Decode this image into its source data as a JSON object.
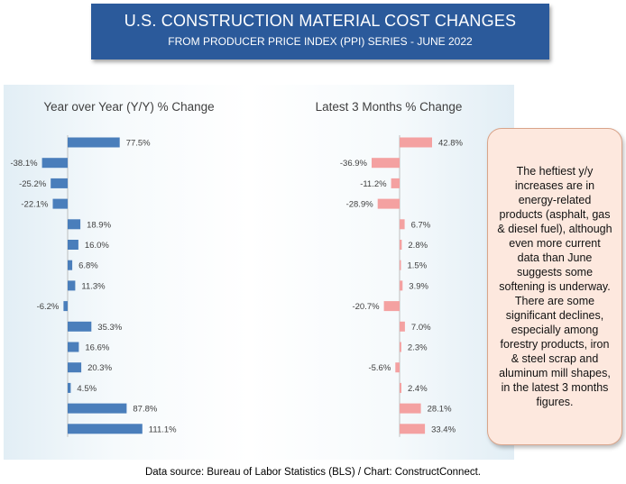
{
  "title": {
    "line1": "U.S. CONSTRUCTION MATERIAL COST CHANGES",
    "line2": "FROM PRODUCER PRICE INDEX (PPI) SERIES - JUNE 2022"
  },
  "note": "The heftiest y/y increases are in energy-related products (asphalt, gas & diesel fuel), although even more current data than June suggests some softening is underway. There are some significant declines, especially among forestry products, iron & steel scrap and aluminum mill shapes, in the latest 3 months figures.",
  "source": "Data source: Bureau of Labor Statistics (BLS) / Chart: ConstructConnect.",
  "colors": {
    "yoy": "#4a7ebb",
    "m3": "#f4a1a1",
    "title_bg": "#2b5a9b",
    "note_bg": "#fde8de"
  },
  "chart_data": [
    {
      "type": "bar",
      "orientation": "horizontal",
      "title": "Year over Year (Y/Y) % Change",
      "values": [
        77.5,
        -38.1,
        -25.2,
        -22.1,
        18.9,
        16.0,
        6.8,
        11.3,
        -6.2,
        35.3,
        16.6,
        20.3,
        4.5,
        87.8,
        111.1
      ],
      "labels": [
        "77.5%",
        "-38.1%",
        "-25.2%",
        "-22.1%",
        "18.9%",
        "16.0%",
        "6.8%",
        "11.3%",
        "-6.2%",
        "35.3%",
        "16.6%",
        "20.3%",
        "4.5%",
        "87.8%",
        "111.1%"
      ]
    },
    {
      "type": "bar",
      "orientation": "horizontal",
      "title": "Latest 3 Months % Change",
      "values": [
        42.8,
        -36.9,
        -11.2,
        -28.9,
        6.7,
        2.8,
        1.5,
        3.9,
        -20.7,
        7.0,
        2.3,
        -5.6,
        2.4,
        28.1,
        33.4
      ],
      "labels": [
        "42.8%",
        "-36.9%",
        "-11.2%",
        "-28.9%",
        "6.7%",
        "2.8%",
        "1.5%",
        "3.9%",
        "-20.7%",
        "7.0%",
        "2.3%",
        "-5.6%",
        "2.4%",
        "28.1%",
        "33.4%"
      ]
    }
  ]
}
